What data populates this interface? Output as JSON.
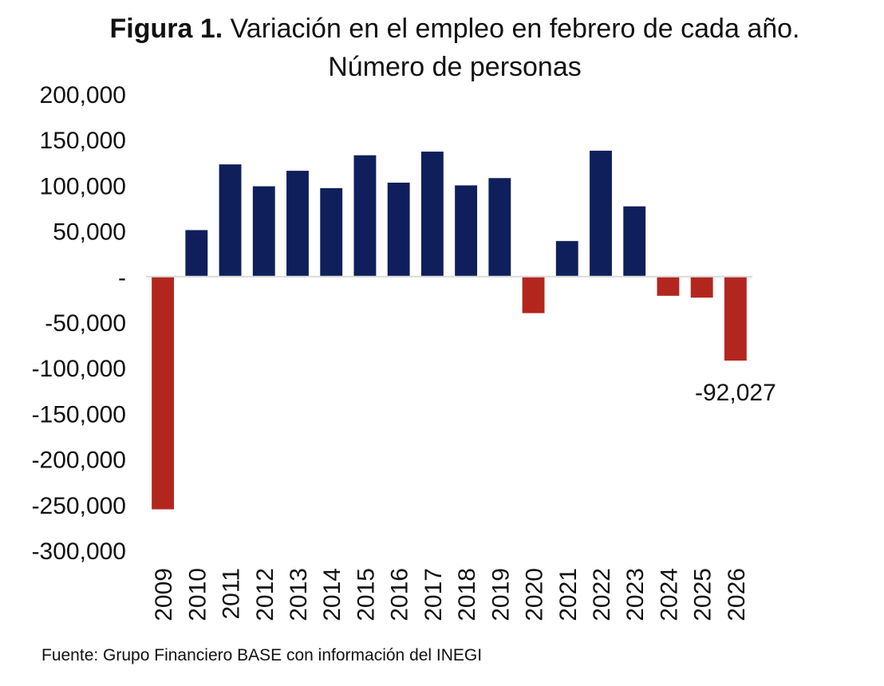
{
  "chart_data": {
    "type": "bar",
    "title_label": "Figura 1.",
    "title": "Variación en el empleo en febrero de cada año. Número de personas",
    "categories": [
      "2009",
      "2010",
      "2011",
      "2012",
      "2013",
      "2014",
      "2015",
      "2016",
      "2017",
      "2018",
      "2019",
      "2020",
      "2021",
      "2022",
      "2023",
      "2024",
      "2025",
      "2026"
    ],
    "values": [
      -255000,
      51000,
      123000,
      99000,
      116000,
      97000,
      133000,
      103000,
      137000,
      100000,
      108000,
      -40000,
      39000,
      138000,
      77000,
      -21000,
      -23000,
      -92027
    ],
    "ylim": [
      -300000,
      200000
    ],
    "yticks": [
      200000,
      150000,
      100000,
      50000,
      0,
      -50000,
      -100000,
      -150000,
      -200000,
      -250000,
      -300000
    ],
    "ytick_labels": [
      "200,000",
      "150,000",
      "100,000",
      "50,000",
      "-",
      "-50,000",
      "-100,000",
      "-150,000",
      "-200,000",
      "-250,000",
      "-300,000"
    ],
    "annotations": [
      {
        "category": "2026",
        "text": "-92,027"
      }
    ],
    "colors": {
      "positive": "#0f1f5c",
      "negative": "#b3261e",
      "axis": "#d9d9d9",
      "text": "#111111"
    },
    "grid": false,
    "legend": "none"
  },
  "source": "Fuente: Grupo Financiero BASE con información del INEGI"
}
